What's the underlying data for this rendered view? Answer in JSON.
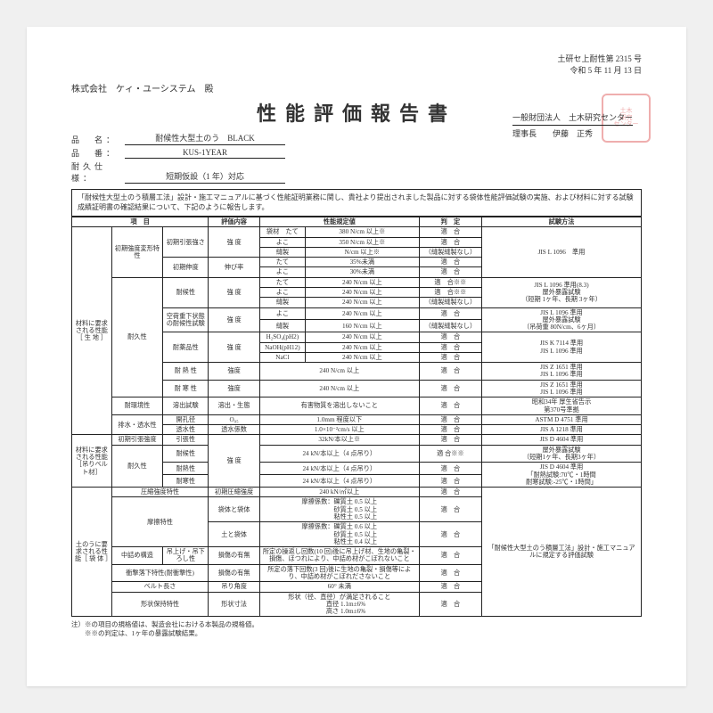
{
  "header": {
    "doc_number": "土研セ上耐性第 2315 号",
    "date": "令和 5 年 11 月 13 日",
    "recipient": "株式会社　ケィ・ユーシステム　殿"
  },
  "title": "性能評価報告書",
  "meta": {
    "name_label": "品　名：",
    "name_value": "耐候性大型土のう　BLACK",
    "number_label": "品　番：",
    "number_value": "KUS-1YEAR",
    "spec_label": "耐久仕様：",
    "spec_value": "短期仮設（1 年）対応"
  },
  "org": {
    "corp": "一般財団法人　土木研究センター",
    "chairman_label": "理事長",
    "chairman_name": "伊藤　正秀"
  },
  "intro": "「耐候性大型土のう積層工法」設計・施工マニュアルに基づく性能証明業務に関し、貴社より提出されました製品に対する袋体性能評価試験の実施、および材料に対する試験成績証明書の確認結果について、下記のように報告します。",
  "columns": {
    "item": "項　目",
    "content": "評価内容",
    "criteria": "性能規定値",
    "judge": "判　定",
    "method": "試験方法"
  },
  "cat": {
    "mat_life": "材料に要求される性能［ 生 地 ］",
    "mat_belt": "材料に要求される性能［吊りベルト材］",
    "bag": "土のうに要求される性能［ 袋 体 ］"
  },
  "rows": {
    "r1g": "初期強度変形特性",
    "r1a": "初期引張強さ",
    "r1a_c": "強 度",
    "r1a1l": "袋材　たて",
    "r1a1v": "380 N/cm 以上※",
    "r1a1j": "適　合",
    "r1a2l": "よこ",
    "r1a2v": "350 N/cm 以上※",
    "r1a2j": "適　合",
    "r1a3l": "縫製",
    "r1a3v": "N/cm 以上※",
    "r1a3j": "（縫製縫製なし）",
    "r1m": "JIS L 1096　準用",
    "r1b": "初期伸度",
    "r1b_c": "伸び率",
    "r1b1l": "たて",
    "r1b1v": "35%未満",
    "r1b1j": "適　合",
    "r1b2l": "よこ",
    "r1b2v": "30%未満",
    "r1b2j": "適　合",
    "r2g": "耐久性",
    "r2a": "耐候性",
    "r2a_c": "強 度",
    "r2a1l": "たて",
    "r2a1v": "240 N/cm 以上",
    "r2a1j": "適　合※※",
    "r2a2l": "よこ",
    "r2a2v": "240 N/cm 以上",
    "r2a2j": "適　合※※",
    "r2a3l": "縫製",
    "r2a3v": "240 N/cm 以上",
    "r2a3j": "（縫製縫製なし）",
    "r2am": "JIS L 1096 準用(8.3)\n屋外暴露試験\n（短期 1ヶ年、長期 3ヶ年）",
    "r2b": "空荷重下状態の耐候性試験",
    "r2b_c": "強 度",
    "r2b1l": "よこ",
    "r2b1v": "240 N/cm 以上",
    "r2b1j": "適　合",
    "r2b2l": "縫製",
    "r2b2v": "160 N/cm 以上",
    "r2b2j": "（縫製縫製なし）",
    "r2bm": "JIS L 1096 準用\n屋外暴露試験\n（吊荷重 80N/cm、6ヶ月）",
    "r2c": "耐薬品性",
    "r2c_c": "強 度",
    "r2c1l": "H₂SO₄(pH2)",
    "r2c1v": "240 N/cm 以上",
    "r2c1j": "適　合",
    "r2c2l": "NaOH(pH12)",
    "r2c2v": "240 N/cm 以上",
    "r2c2j": "適　合",
    "r2c3l": "NaCl",
    "r2c3v": "240 N/cm 以上",
    "r2c3j": "適　合",
    "r2cm": "JIS K 7114 準用\nJIS L 1096 準用",
    "r2d": "耐 熱 性",
    "r2d_c": "強度",
    "r2dv": "240 N/cm 以上",
    "r2dj": "適　合",
    "r2dm": "JIS Z 1651 準用\nJIS L 1096 準用",
    "r2e": "耐 寒 性",
    "r2e_c": "強度",
    "r2ev": "240 N/cm 以上",
    "r2ej": "適　合",
    "r2em": "JIS Z 1651 準用\nJIS L 1096 準用",
    "r3": "耐環境性",
    "r3a": "溶出試験",
    "r3a_c": "溶出・生態",
    "r3v": "有害物質を溶出しないこと",
    "r3j": "適　合",
    "r3m": "昭和34年 厚生省告示\n第370号準拠",
    "r4": "排水・透水性",
    "r4a": "開孔径",
    "r4a_c": "O₉₅",
    "r4av": "1.0mm 程度以下",
    "r4aj": "適　合",
    "r4am": "ASTM D 4751 準用",
    "r4b": "透水性",
    "r4b_c": "透水係数",
    "r4bv": "1.0×10⁻²cm/s 以上",
    "r4bj": "適　合",
    "r4bm": "JIS A 1218 準用",
    "b1": "初期引張強度",
    "b1a": "引張性",
    "b1a_c": "強 度",
    "b1av": "32kN/本以上※",
    "b1aj": "適　合",
    "b1am": "JIS D 4604 準用",
    "b2": "耐久性",
    "b2a": "耐候性",
    "b2av": "24 kN/本以上（4 点吊り）",
    "b2aj": "適 合※※",
    "b2am": "屋外暴露試験\n（短期1ヶ年、長期3ヶ年）",
    "b2b": "耐熱性",
    "b2bv": "24 kN/本以上（4 点吊り）",
    "b2bj": "適　合",
    "b2bm": "JIS D 4604 準用\n「耐熱試験:70℃・1時間\n耐寒試験:-25℃・1時間」",
    "b2c": "耐寒性",
    "b2cv": "24 kN/本以上（4 点吊り）",
    "b2cj": "適　合",
    "s1": "圧縮強度特性",
    "s1a": "初期圧縮強度",
    "s1v": "240 kN/㎡以上",
    "s1j": "適　合",
    "s2": "摩擦特性",
    "s2a": "袋体と袋体",
    "s2av": "摩擦係数：礫質土 0.5 以上\n　　　　　砂質土 0.5 以上\n　　　　　粘性土 0.5 以上",
    "s2aj": "適　合",
    "s2b": "土と袋体",
    "s2bv": "摩擦係数：礫質土 0.6 以上\n　　　　　砂質土 0.5 以上\n　　　　　粘性土 0.4 以上",
    "s2bj": "適　合",
    "s3": "中詰め構造",
    "s3a": "吊上げ・吊下ろし性",
    "s3a_c": "損傷の有無",
    "s3v": "所定の操返し回数(10 回)後に吊上げ材、生地の亀裂・損傷、ほつれにより、中詰め材がこぼれないこと",
    "s3j": "適　合",
    "sm": "「耐候性大型土のう積層工法」設計・施工マニュアルに規定する評価試験",
    "s4": "衝撃落下特性(耐衝撃性)",
    "s4a": "損傷の有無",
    "s4v": "所定の落下回数(3 回)後に生地の亀裂・損傷等により、中詰め材がこぼれださないこと",
    "s4j": "適　合",
    "s5": "ベルト長さ",
    "s5a": "吊り角度",
    "s5v": "60° 未満",
    "s5j": "適　合",
    "s6": "形状保持特性",
    "s6a": "形状寸法",
    "s6v": "形状（径、直径）が満足されること\n　　直径 1.1m±6%\n　　高さ 1.0m±6%",
    "s6j": "適　合"
  },
  "footnote": "注）※の項目の規格値は、製造会社における本製品の規格値。\n　　※※の判定は、1ヶ年の暴露試験結果。"
}
